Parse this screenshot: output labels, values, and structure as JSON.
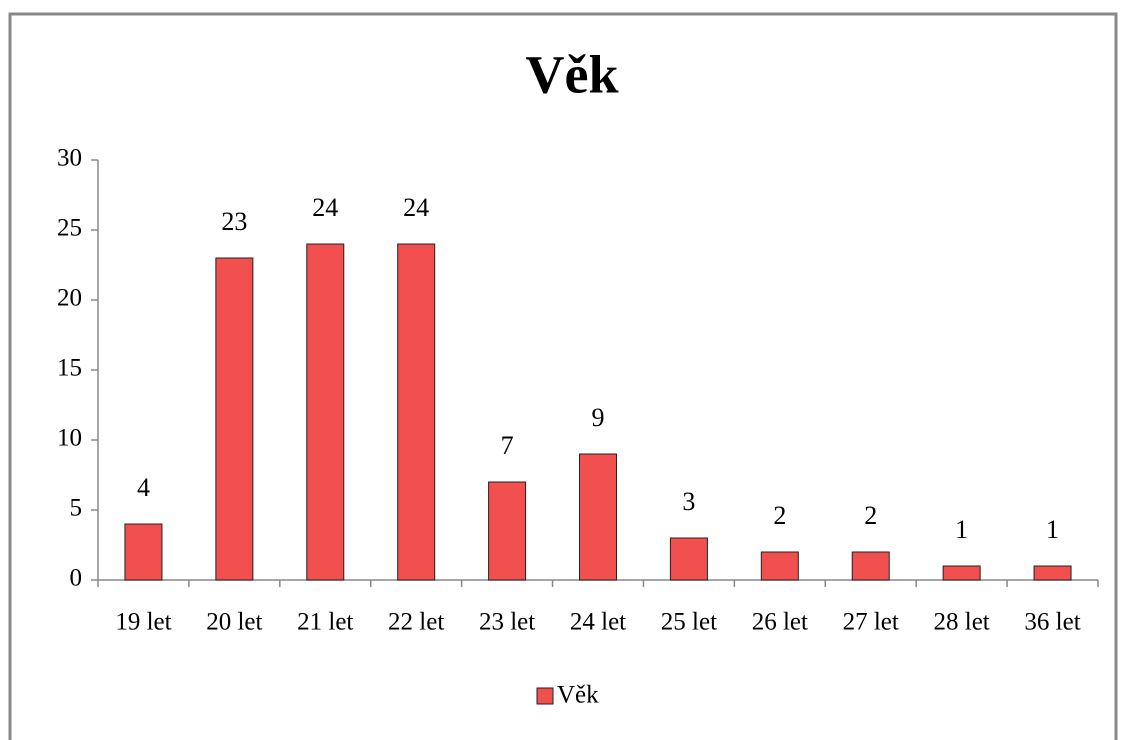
{
  "chart_data": {
    "type": "bar",
    "title": "Věk",
    "categories": [
      "19 let",
      "20 let",
      "21 let",
      "22 let",
      "23 let",
      "24 let",
      "25 let",
      "26 let",
      "27 let",
      "28 let",
      "36 let"
    ],
    "series": [
      {
        "name": "Věk",
        "color": "#f24f4f",
        "values": [
          4,
          23,
          24,
          24,
          7,
          9,
          3,
          2,
          2,
          1,
          1
        ]
      }
    ],
    "ylim": [
      0,
      30
    ],
    "yticks": [
      0,
      5,
      10,
      15,
      20,
      25,
      30
    ],
    "grid": false,
    "legend": "bottom"
  }
}
